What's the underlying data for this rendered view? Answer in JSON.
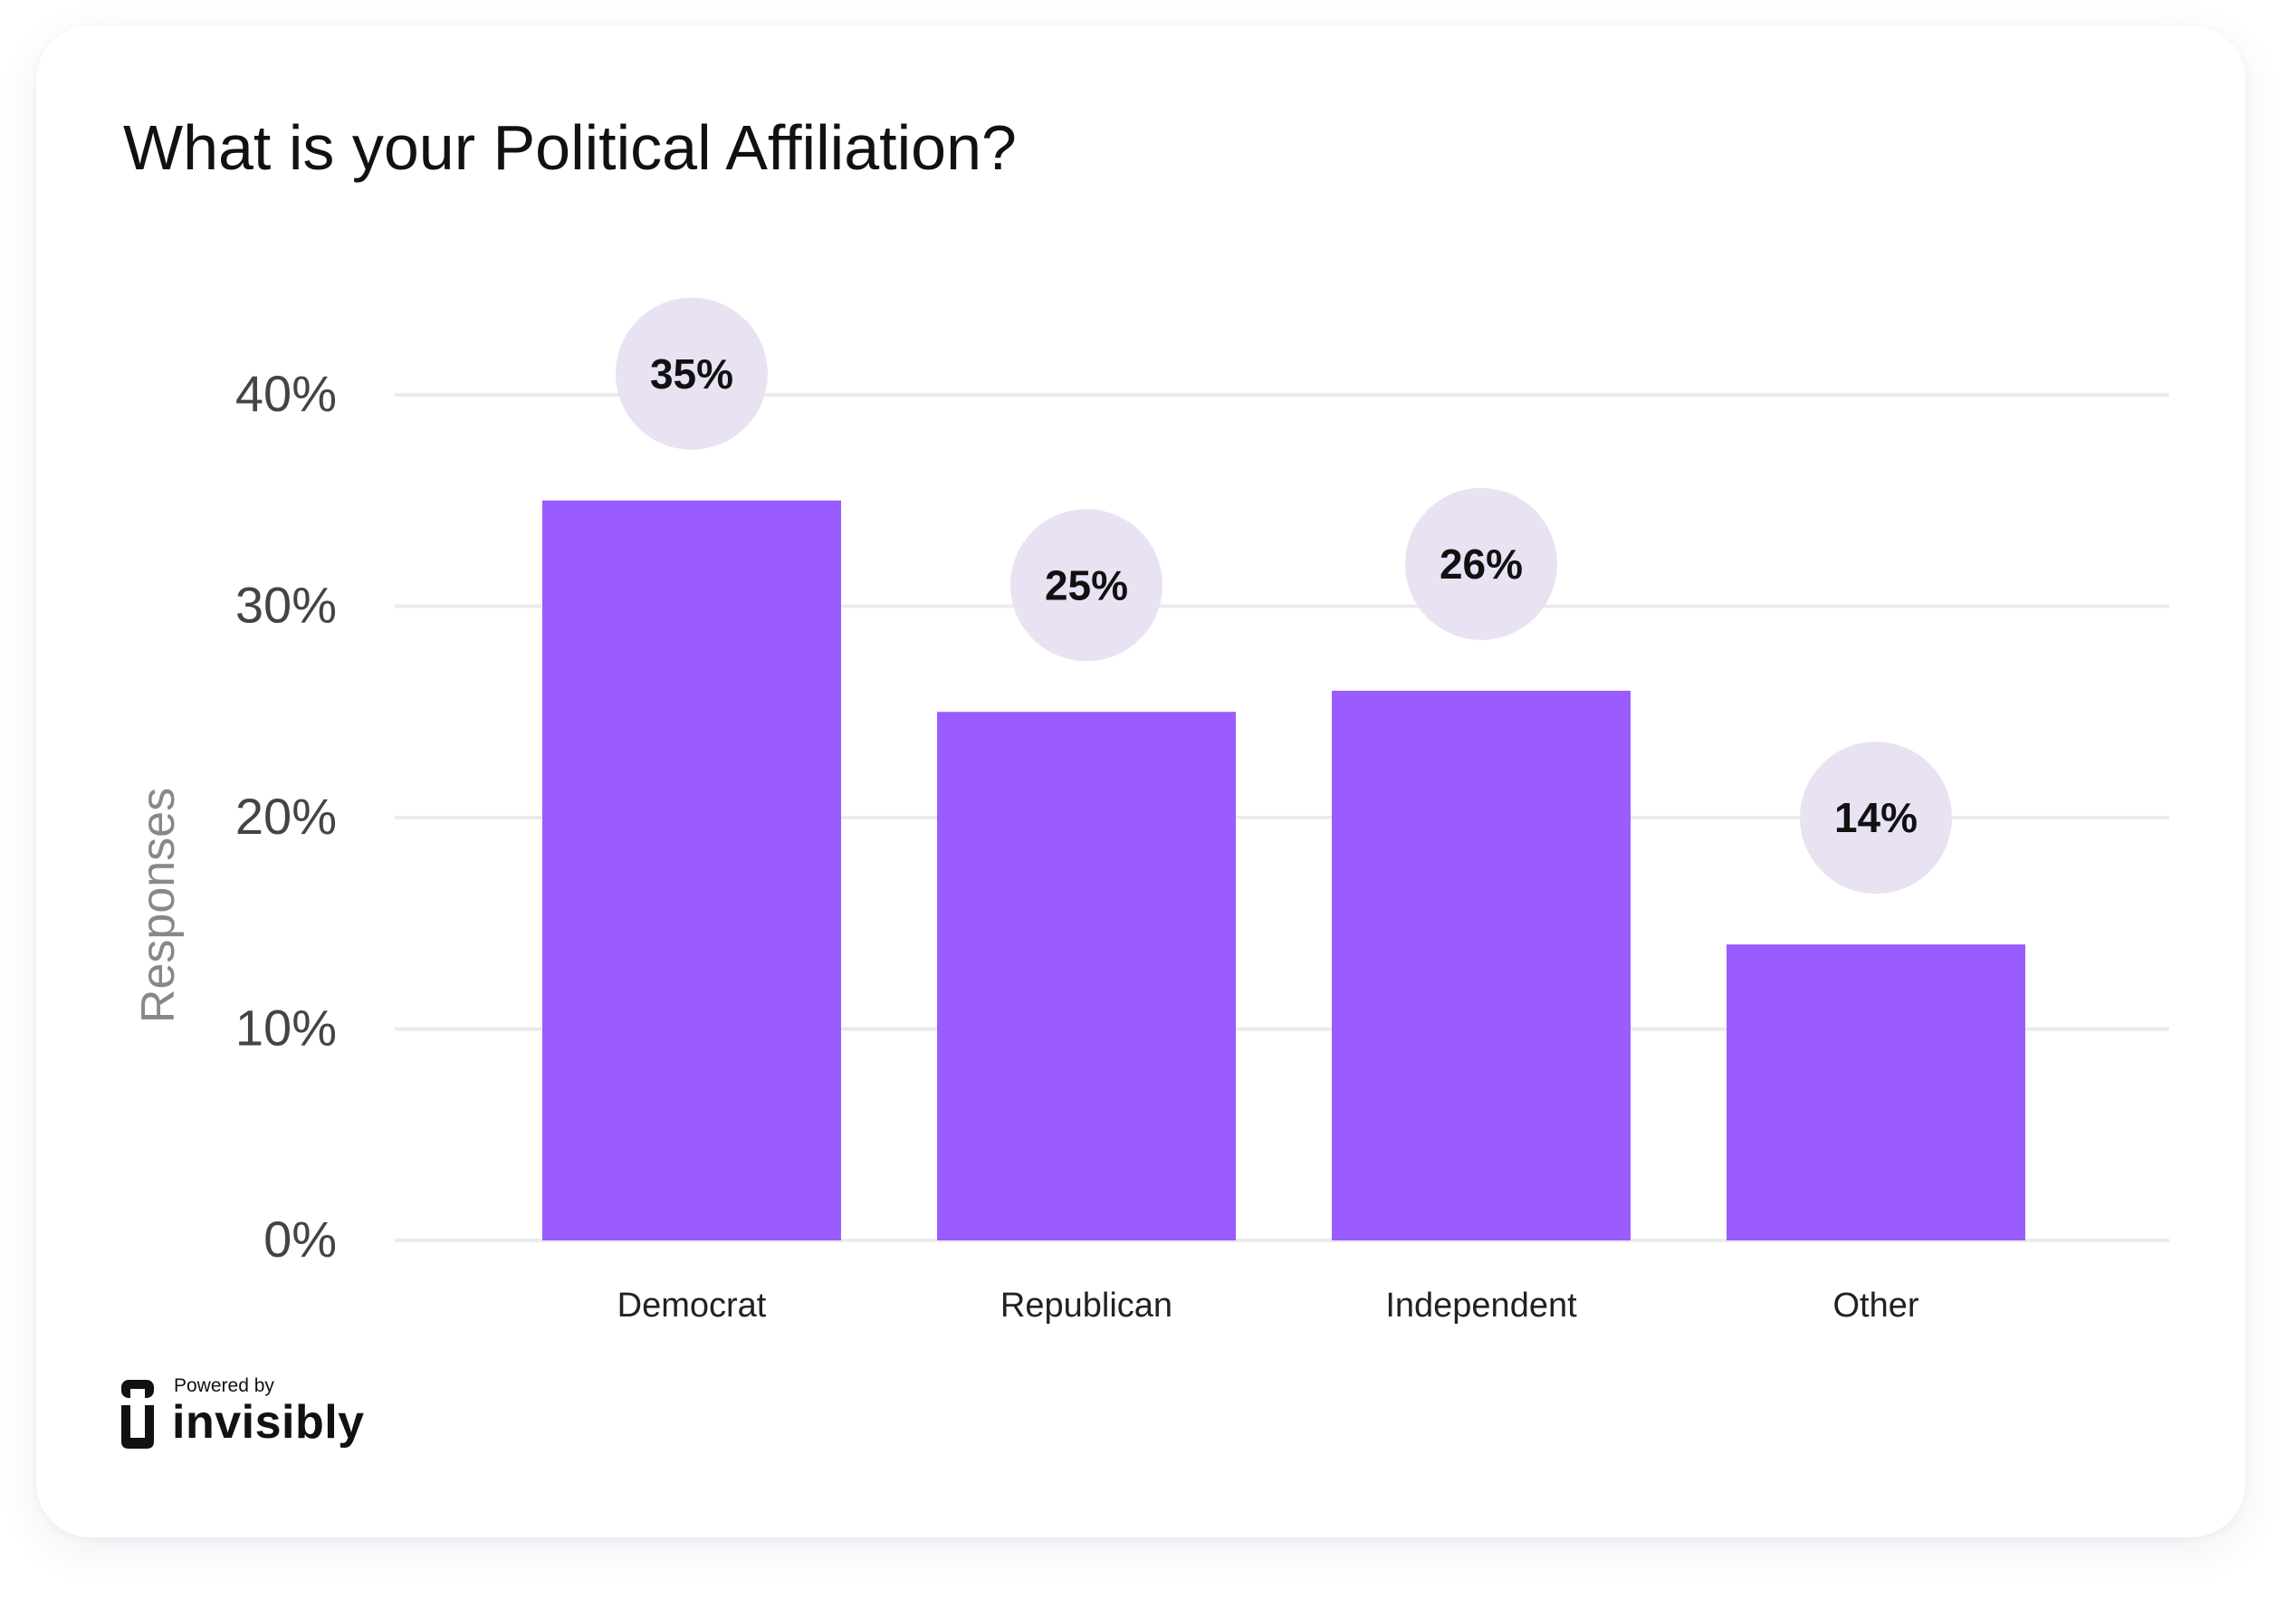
{
  "header": {
    "title": "What is your Political Affiliation?"
  },
  "chart_data": {
    "type": "bar",
    "title": "What is your Political Affiliation?",
    "xlabel": "",
    "ylabel": "Responses",
    "categories": [
      "Democrat",
      "Republican",
      "Independent",
      "Other"
    ],
    "values": [
      35,
      25,
      26,
      14
    ],
    "data_labels": [
      "35%",
      "25%",
      "26%",
      "14%"
    ],
    "ylim": [
      0,
      40
    ],
    "yticks": [
      0,
      10,
      20,
      30,
      40
    ],
    "ytick_labels": [
      "0%",
      "10%",
      "20%",
      "30%",
      "40%"
    ],
    "grid": true,
    "legend": "none",
    "colors": {
      "bar": "#9B5CFF",
      "label_bubble": "#E8E2F3",
      "gridline": "#EBEBEB",
      "tick_text": "#444444",
      "axis_title": "#888888"
    }
  },
  "footer": {
    "powered_by": "Powered by",
    "brand": "invisibly",
    "logo_icon": "invisibly-logo-icon"
  }
}
